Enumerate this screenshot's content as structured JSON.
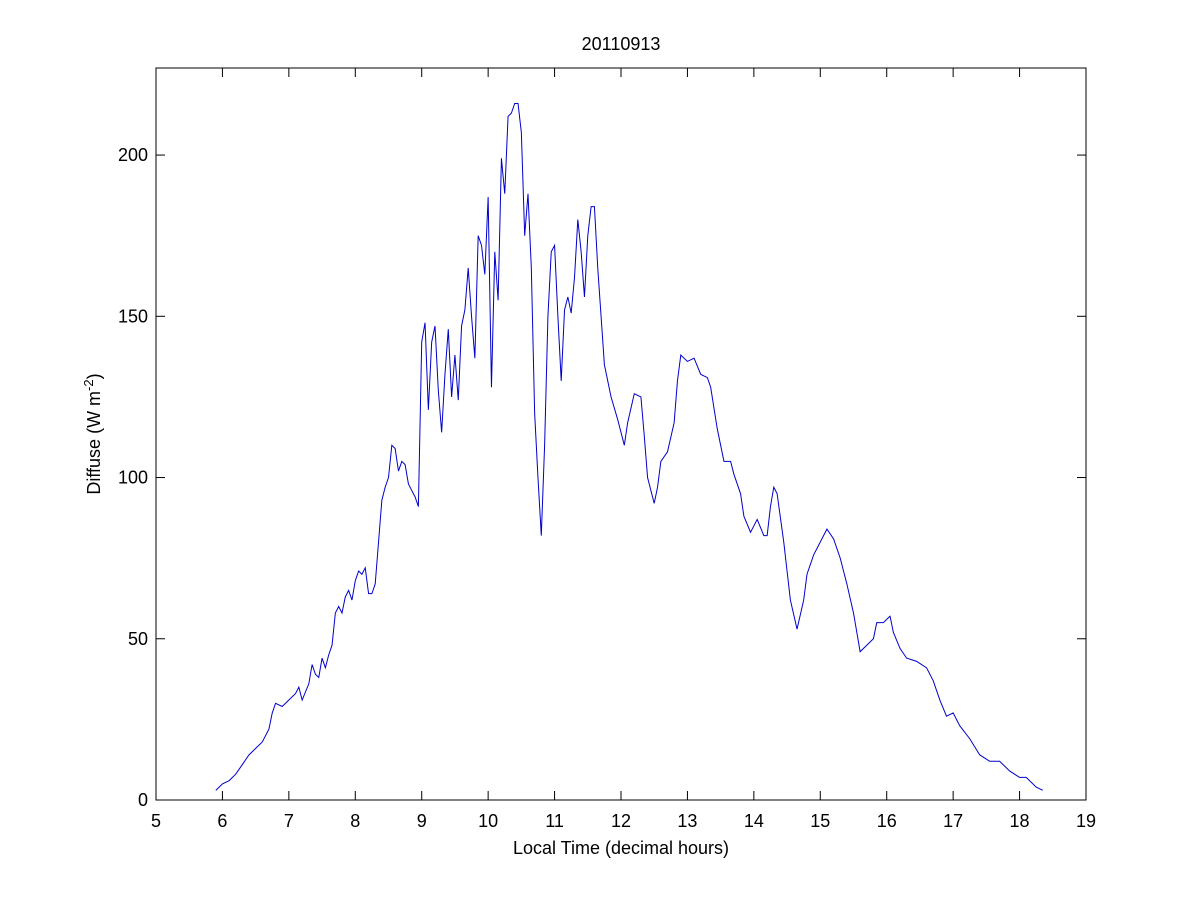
{
  "chart_data": {
    "type": "line",
    "title": "20110913",
    "x_label": "Local Time (decimal hours)",
    "y_label": {
      "text": "Diffuse (W m",
      "superscript": "-2",
      "suffix": ")"
    },
    "xlim": [
      5,
      19
    ],
    "xticks": [
      5,
      6,
      7,
      8,
      9,
      10,
      11,
      12,
      13,
      14,
      15,
      16,
      17,
      18,
      19
    ],
    "ylim": [
      0,
      227
    ],
    "yticks": [
      0,
      50,
      100,
      150,
      200
    ],
    "grid": false,
    "series": [
      {
        "name": "Diffuse",
        "color": "#0000cc",
        "x": [
          5.9,
          6.0,
          6.1,
          6.2,
          6.3,
          6.4,
          6.5,
          6.6,
          6.7,
          6.75,
          6.8,
          6.9,
          7.0,
          7.1,
          7.15,
          7.2,
          7.3,
          7.35,
          7.4,
          7.45,
          7.5,
          7.55,
          7.6,
          7.65,
          7.7,
          7.75,
          7.8,
          7.85,
          7.9,
          7.95,
          8.0,
          8.05,
          8.1,
          8.15,
          8.2,
          8.25,
          8.3,
          8.4,
          8.45,
          8.5,
          8.55,
          8.6,
          8.65,
          8.7,
          8.75,
          8.8,
          8.85,
          8.9,
          8.95,
          9.0,
          9.05,
          9.1,
          9.15,
          9.2,
          9.25,
          9.3,
          9.35,
          9.4,
          9.45,
          9.5,
          9.55,
          9.6,
          9.65,
          9.7,
          9.75,
          9.8,
          9.85,
          9.9,
          9.95,
          10.0,
          10.05,
          10.1,
          10.15,
          10.2,
          10.25,
          10.3,
          10.35,
          10.4,
          10.45,
          10.5,
          10.55,
          10.6,
          10.65,
          10.7,
          10.75,
          10.8,
          10.85,
          10.9,
          10.95,
          11.0,
          11.05,
          11.1,
          11.15,
          11.2,
          11.25,
          11.3,
          11.35,
          11.4,
          11.45,
          11.5,
          11.55,
          11.6,
          11.65,
          11.7,
          11.75,
          11.85,
          11.95,
          12.05,
          12.1,
          12.2,
          12.3,
          12.35,
          12.4,
          12.5,
          12.55,
          12.6,
          12.7,
          12.8,
          12.85,
          12.9,
          13.0,
          13.1,
          13.2,
          13.3,
          13.35,
          13.45,
          13.55,
          13.65,
          13.7,
          13.8,
          13.85,
          13.95,
          14.05,
          14.15,
          14.2,
          14.25,
          14.3,
          14.35,
          14.45,
          14.55,
          14.65,
          14.75,
          14.8,
          14.9,
          15.0,
          15.1,
          15.2,
          15.3,
          15.4,
          15.5,
          15.6,
          15.7,
          15.8,
          15.85,
          15.95,
          16.05,
          16.1,
          16.2,
          16.3,
          16.45,
          16.6,
          16.7,
          16.8,
          16.9,
          17.0,
          17.1,
          17.25,
          17.4,
          17.55,
          17.7,
          17.85,
          18.0,
          18.1,
          18.25,
          18.35
        ],
        "values": [
          3,
          5,
          6,
          8,
          11,
          14,
          16,
          18,
          22,
          27,
          30,
          29,
          31,
          33,
          35,
          31,
          36,
          42,
          39,
          38,
          44,
          41,
          45,
          48,
          58,
          60,
          58,
          63,
          65,
          62,
          68,
          71,
          70,
          72,
          64,
          64,
          67,
          93,
          97,
          100,
          110,
          109,
          102,
          105,
          104,
          98,
          96,
          94,
          91,
          142,
          148,
          121,
          142,
          147,
          127,
          114,
          132,
          146,
          125,
          138,
          124,
          147,
          152,
          165,
          150,
          137,
          175,
          172,
          163,
          187,
          128,
          170,
          155,
          199,
          188,
          212,
          213,
          216,
          216,
          207,
          175,
          188,
          165,
          120,
          100,
          82,
          110,
          150,
          170,
          172,
          150,
          130,
          152,
          156,
          151,
          162,
          180,
          170,
          156,
          175,
          184,
          184,
          165,
          150,
          135,
          125,
          118,
          110,
          117,
          126,
          125,
          113,
          100,
          92,
          97,
          105,
          108,
          117,
          130,
          138,
          136,
          137,
          132,
          131,
          128,
          115,
          105,
          105,
          101,
          95,
          88,
          83,
          87,
          82,
          82,
          91,
          97,
          95,
          80,
          62,
          53,
          62,
          70,
          76,
          80,
          84,
          81,
          75,
          67,
          58,
          46,
          48,
          50,
          55,
          55,
          57,
          52,
          47,
          44,
          43,
          41,
          37,
          31,
          26,
          27,
          23,
          19,
          14,
          12,
          12,
          9,
          7,
          7,
          4,
          3
        ]
      }
    ]
  }
}
